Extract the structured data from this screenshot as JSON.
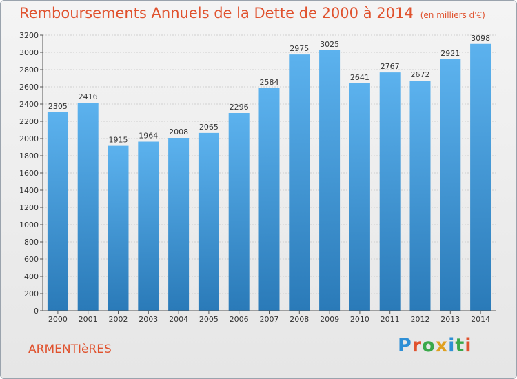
{
  "header": {
    "title": "Remboursements Annuels de la Dette de 2000 à 2014",
    "subtitle": "(en milliers d'€)"
  },
  "footer": {
    "city": "ARMENTIèRES",
    "logo": "Proxiti"
  },
  "colors": {
    "title": "#e0522e",
    "bar_top": "#5cb2ee",
    "bar_bottom": "#2a7ab8"
  },
  "chart_data": {
    "type": "bar",
    "title": "Remboursements Annuels de la Dette de 2000 à 2014",
    "subtitle": "(en milliers d'€)",
    "categories": [
      "2000",
      "2001",
      "2002",
      "2003",
      "2004",
      "2005",
      "2006",
      "2007",
      "2008",
      "2009",
      "2010",
      "2011",
      "2012",
      "2013",
      "2014"
    ],
    "values": [
      2305,
      2416,
      1915,
      1964,
      2008,
      2065,
      2296,
      2584,
      2975,
      3025,
      2641,
      2767,
      2672,
      2921,
      3098
    ],
    "ylim": [
      0,
      3200
    ],
    "yticks": [
      0,
      200,
      400,
      600,
      800,
      1000,
      1200,
      1400,
      1600,
      1800,
      2000,
      2200,
      2400,
      2600,
      2800,
      3000,
      3200
    ],
    "grid": true,
    "legend": "none"
  }
}
